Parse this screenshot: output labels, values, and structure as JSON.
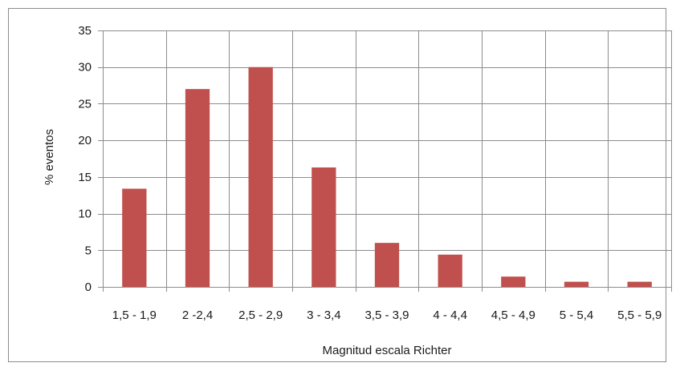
{
  "chart_data": {
    "type": "bar",
    "title": "",
    "xlabel": "Magnitud escala Richter",
    "ylabel": "% eventos",
    "categories": [
      "1,5 - 1,9",
      "2 -2,4",
      "2,5 - 2,9",
      "3 - 3,4",
      "3,5 - 3,9",
      "4 - 4,4",
      "4,5 - 4,9",
      "5 - 5,4",
      "5,5 - 5,9"
    ],
    "values": [
      13.4,
      27,
      30,
      16.3,
      6,
      4.4,
      1.4,
      0.7,
      0.7
    ],
    "ylim": [
      0,
      35
    ],
    "yticks": [
      0,
      5,
      10,
      15,
      20,
      25,
      30,
      35
    ],
    "grid": true,
    "legend": "none",
    "bar_color": "#c0504d",
    "gridline_color": "#8c8c8c"
  }
}
